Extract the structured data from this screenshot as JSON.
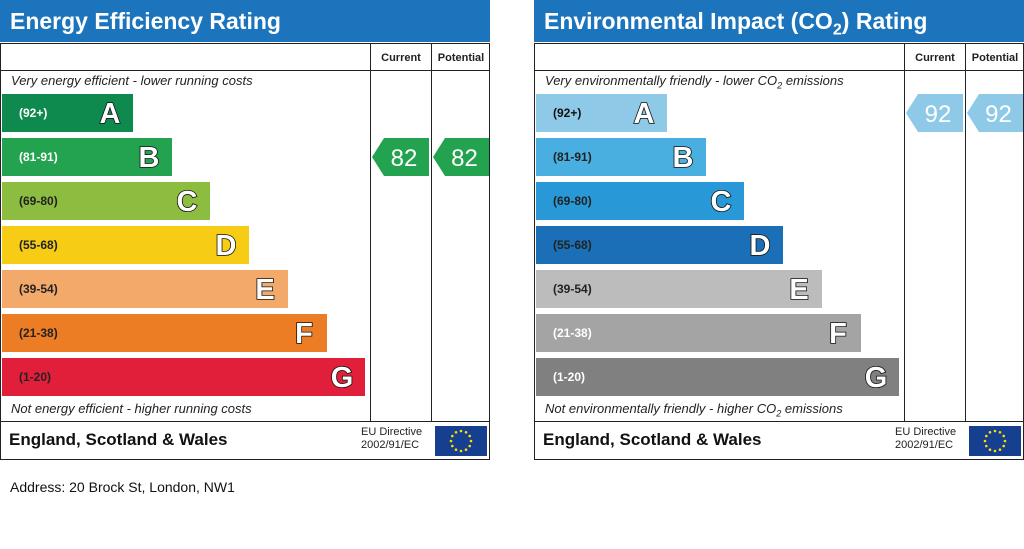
{
  "chart_data": [
    {
      "type": "bar",
      "title": "Energy Efficiency Rating",
      "columns": [
        "Current",
        "Potential"
      ],
      "top_note": "Very energy efficient - lower running costs",
      "bottom_note": "Not energy efficient - higher running costs",
      "bands": [
        {
          "letter": "A",
          "range": "(92+)",
          "color": "#0f8a4f",
          "range_color": "#ffffff"
        },
        {
          "letter": "B",
          "range": "(81-91)",
          "color": "#23a34f",
          "range_color": "#ffffff"
        },
        {
          "letter": "C",
          "range": "(69-80)",
          "color": "#8cbd40",
          "range_color": "#222222"
        },
        {
          "letter": "D",
          "range": "(55-68)",
          "color": "#f6cd14",
          "range_color": "#222222"
        },
        {
          "letter": "E",
          "range": "(39-54)",
          "color": "#f2a96a",
          "range_color": "#222222"
        },
        {
          "letter": "F",
          "range": "(21-38)",
          "color": "#ed7d24",
          "range_color": "#222222"
        },
        {
          "letter": "G",
          "range": "(1-20)",
          "color": "#e21f3a",
          "range_color": "#222222"
        }
      ],
      "current": {
        "value": "82",
        "band": "B",
        "color": "#23a34f"
      },
      "potential": {
        "value": "82",
        "band": "B",
        "color": "#23a34f"
      }
    },
    {
      "type": "bar",
      "title": "Environmental Impact (CO2) Rating",
      "columns": [
        "Current",
        "Potential"
      ],
      "top_note": "Very environmentally friendly - lower CO2 emissions",
      "bottom_note": "Not environmentally friendly - higher CO2 emissions",
      "bands": [
        {
          "letter": "A",
          "range": "(92+)",
          "color": "#8ecae8",
          "range_color": "#111111"
        },
        {
          "letter": "B",
          "range": "(81-91)",
          "color": "#49aee0",
          "range_color": "#222222"
        },
        {
          "letter": "C",
          "range": "(69-80)",
          "color": "#2898d6",
          "range_color": "#222222"
        },
        {
          "letter": "D",
          "range": "(55-68)",
          "color": "#1b6fb6",
          "range_color": "#222222"
        },
        {
          "letter": "E",
          "range": "(39-54)",
          "color": "#bcbcbc",
          "range_color": "#222222"
        },
        {
          "letter": "F",
          "range": "(21-38)",
          "color": "#a4a4a4",
          "range_color": "#ffffff"
        },
        {
          "letter": "G",
          "range": "(1-20)",
          "color": "#808080",
          "range_color": "#ffffff"
        }
      ],
      "current": {
        "value": "92",
        "band": "A",
        "color": "#8ecae8"
      },
      "potential": {
        "value": "92",
        "band": "A",
        "color": "#8ecae8"
      }
    }
  ],
  "left": {
    "title": "Energy Efficiency Rating",
    "col_current": "Current",
    "col_potential": "Potential",
    "top_note": "Very energy efficient - lower running costs",
    "bottom_note": "Not energy efficient - higher running costs",
    "footer_region": "England, Scotland & Wales",
    "eu_line1": "EU Directive",
    "eu_line2": "2002/91/EC"
  },
  "right": {
    "title_prefix": "Environmental Impact (CO",
    "title_sub": "2",
    "title_suffix": ") Rating",
    "col_current": "Current",
    "col_potential": "Potential",
    "top_note_prefix": "Very environmentally friendly - lower CO",
    "top_note_sub": "2",
    "top_note_suffix": " emissions",
    "bottom_note_prefix": "Not environmentally friendly - higher CO",
    "bottom_note_sub": "2",
    "bottom_note_suffix": " emissions",
    "footer_region": "England, Scotland & Wales",
    "eu_line1": "EU Directive",
    "eu_line2": "2002/91/EC"
  },
  "address": "Address: 20 Brock St, London, NW1",
  "icons": {
    "eu_flag": "eu-flag-icon"
  }
}
